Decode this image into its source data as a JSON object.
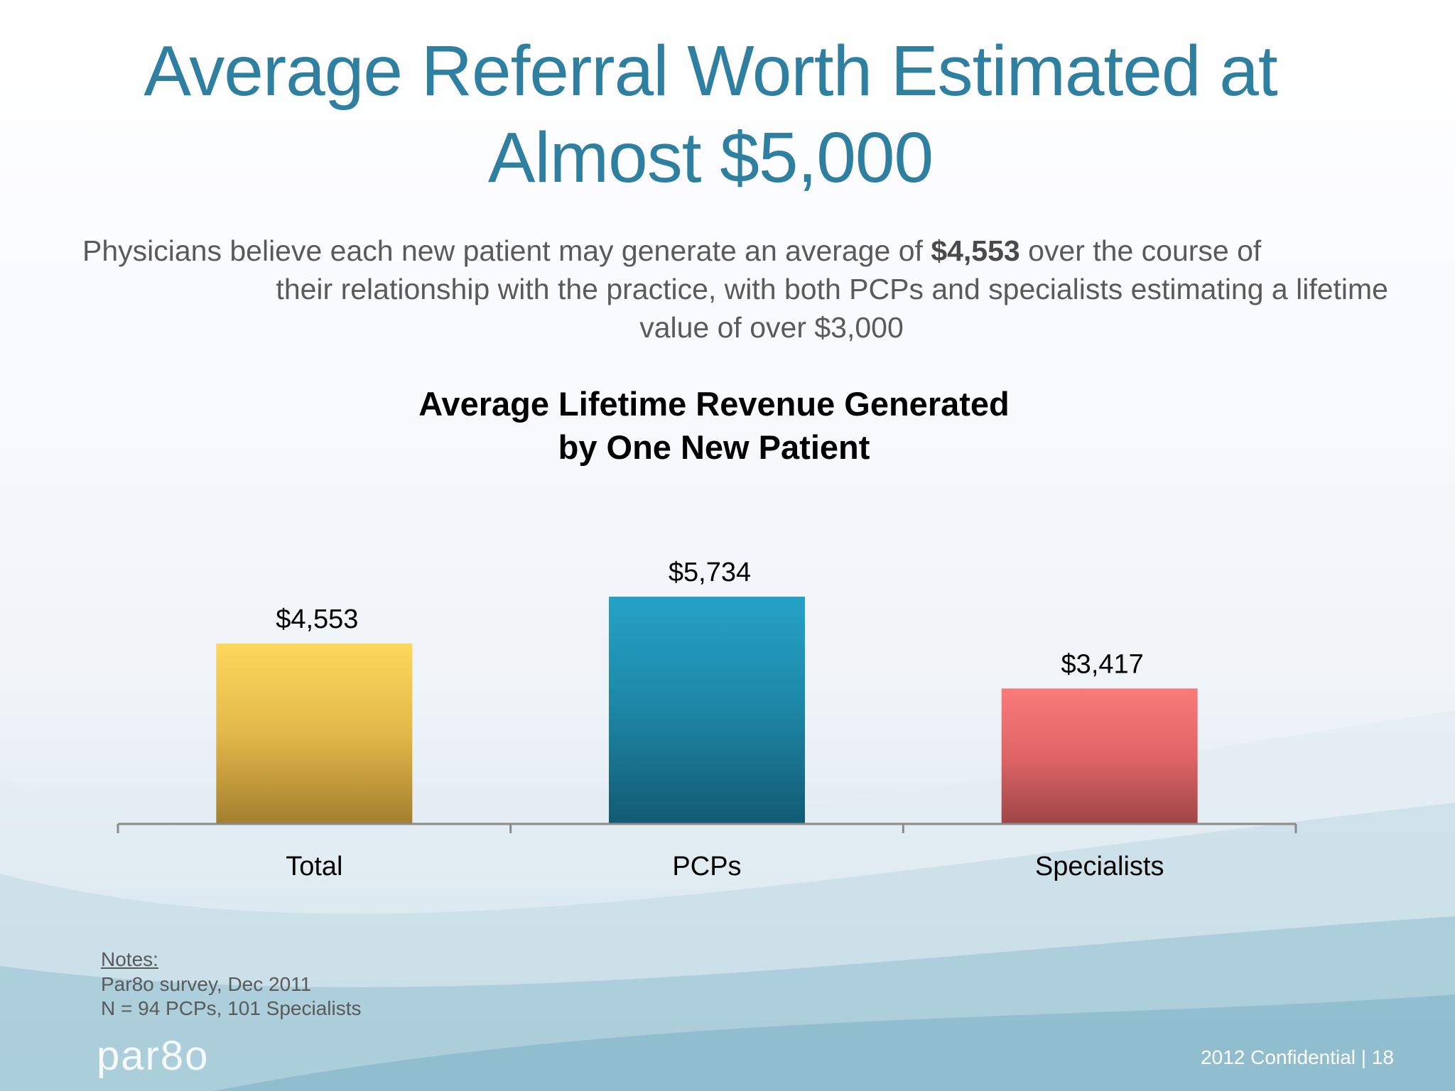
{
  "slide": {
    "title_line1": "Average Referral Worth Estimated at",
    "title_line2": "Almost $5,000",
    "subtitle": {
      "line1_pre": "Physicians believe each new patient may generate an average of ",
      "line1_bold": "$4,553",
      "line1_post": " over the course of",
      "line2": "their relationship with the practice, with both PCPs and specialists estimating a lifetime",
      "line3": "value of over $3,000"
    },
    "notes": {
      "heading": "Notes:",
      "line1": "Par8o survey, Dec 2011",
      "line2": "N = 94 PCPs, 101 Specialists"
    },
    "logo_text": "par8o",
    "footer": "2012 Confidential   |  18"
  },
  "colors": {
    "title": "#2f7fa0",
    "bar_total": "#fbd55a",
    "bar_pcps": "#24a0c6",
    "bar_specialists": "#f87a78"
  },
  "chart_data": {
    "type": "bar",
    "title_line1": "Average Lifetime Revenue Generated",
    "title_line2": "by One New Patient",
    "categories": [
      "Total",
      "PCPs",
      "Specialists"
    ],
    "values": [
      4553,
      5734,
      3417
    ],
    "value_labels": [
      "$4,553",
      "$5,734",
      "$3,417"
    ],
    "xlabel": "",
    "ylabel": "",
    "ylim": [
      0,
      7500
    ],
    "grid": false,
    "legend": "none"
  }
}
